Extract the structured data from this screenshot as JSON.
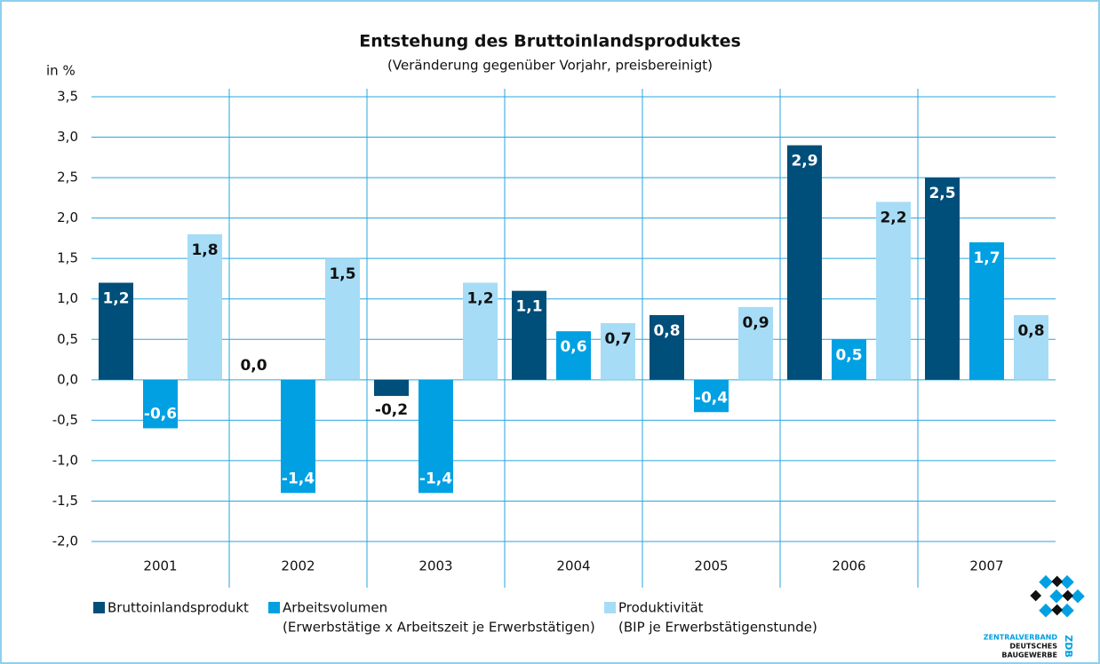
{
  "chart_data": {
    "type": "bar",
    "title": "Entstehung des Bruttoinlandsproduktes",
    "subtitle": "(Veränderung gegenüber Vorjahr, preisbereinigt)",
    "ylabel": "in %",
    "categories": [
      "2001",
      "2002",
      "2003",
      "2004",
      "2005",
      "2006",
      "2007"
    ],
    "series": [
      {
        "name": "Bruttoinlandsprodukt",
        "color": "#004f7a",
        "values": [
          1.2,
          0.0,
          -0.2,
          1.1,
          0.8,
          2.9,
          2.5
        ],
        "value_labels": [
          "1,2",
          "0,0",
          "-0,2",
          "1,1",
          "0,8",
          "2,9",
          "2,5"
        ]
      },
      {
        "name": "Arbeitsvolumen",
        "description": "(Erwerbstätige x Arbeitszeit je Erwerbstätigen)",
        "color": "#00a0e3",
        "values": [
          -0.6,
          -1.4,
          -1.4,
          0.6,
          -0.4,
          0.5,
          1.7
        ],
        "value_labels": [
          "-0,6",
          "-1,4",
          "-1,4",
          "0,6",
          "-0,4",
          "0,5",
          "1,7"
        ]
      },
      {
        "name": "Produktivität",
        "description": "(BIP je Erwerbstätigenstunde)",
        "color": "#a6dcf5",
        "values": [
          1.8,
          1.5,
          1.2,
          0.7,
          0.9,
          2.2,
          0.8
        ],
        "value_labels": [
          "1,8",
          "1,5",
          "1,2",
          "0,7",
          "0,9",
          "2,2",
          "0,8"
        ]
      }
    ],
    "ylim": [
      -2.0,
      3.5
    ],
    "yticks": [
      {
        "value": 3.5,
        "label": "3,5"
      },
      {
        "value": 3.0,
        "label": "3,0"
      },
      {
        "value": 2.5,
        "label": "2,5"
      },
      {
        "value": 2.0,
        "label": "2,0"
      },
      {
        "value": 1.5,
        "label": "1,5"
      },
      {
        "value": 1.0,
        "label": "1,0"
      },
      {
        "value": 0.5,
        "label": "0,5"
      },
      {
        "value": 0.0,
        "label": "0,0"
      },
      {
        "value": -0.5,
        "label": "-0,5"
      },
      {
        "value": -1.0,
        "label": "-1,0"
      },
      {
        "value": -1.5,
        "label": "-1,5"
      },
      {
        "value": -2.0,
        "label": "-2,0"
      }
    ],
    "grid": true,
    "legend": "bottom",
    "logo": {
      "line1": "ZENTRALVERBAND",
      "line2": "DEUTSCHES",
      "line3": "BAUGEWERBE",
      "short": "ZDB"
    }
  }
}
